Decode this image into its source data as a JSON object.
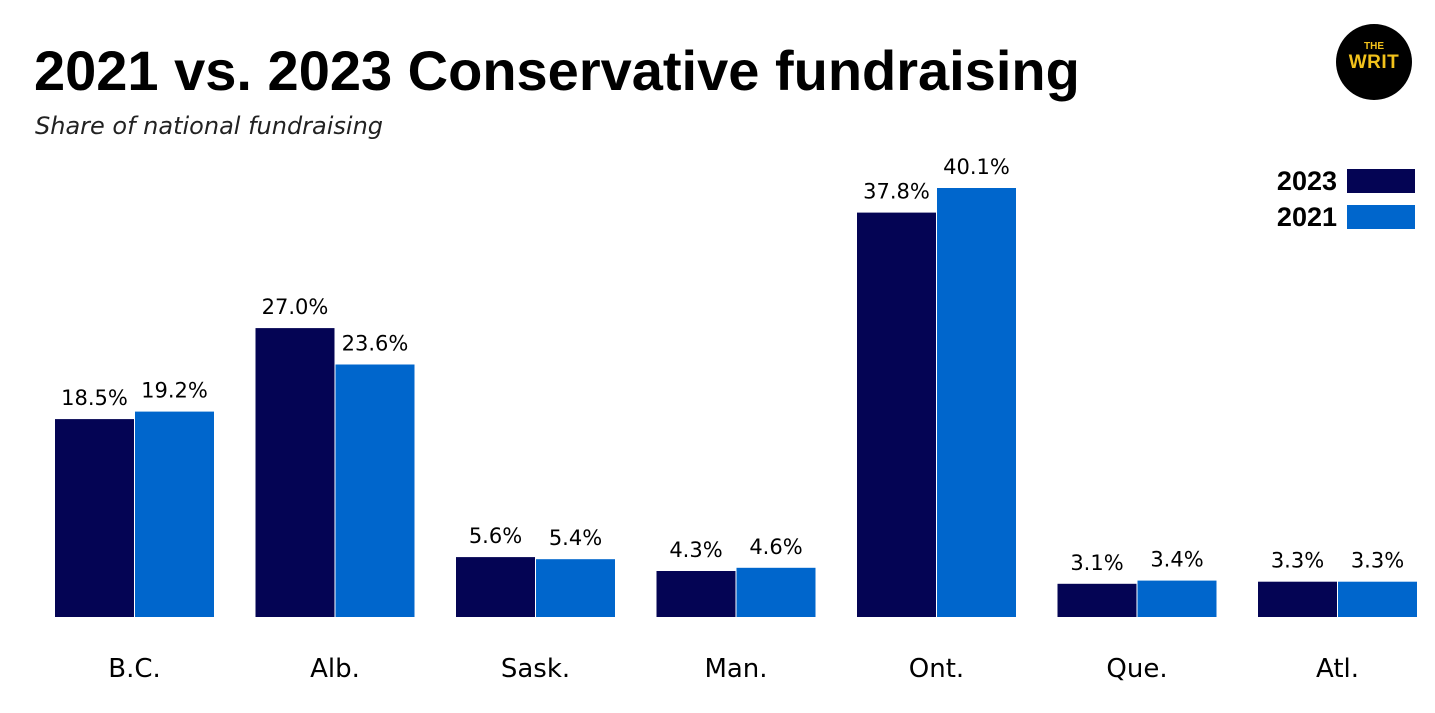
{
  "logo": {
    "line1": "THE",
    "line2": "WRIT"
  },
  "colors": {
    "series_2023": "#040454",
    "series_2021": "#0066cc",
    "logo_accent": "#f2c21b"
  },
  "chart_data": {
    "type": "bar",
    "title": "2021 vs. 2023 Conservative fundraising",
    "subtitle": "Share of national fundraising",
    "categories": [
      "B.C.",
      "Alb.",
      "Sask.",
      "Man.",
      "Ont.",
      "Que.",
      "Atl."
    ],
    "series": [
      {
        "name": "2023",
        "values": [
          18.5,
          27.0,
          5.6,
          4.3,
          37.8,
          3.1,
          3.3
        ],
        "labels": [
          "18.5%",
          "27.0%",
          "5.6%",
          "4.3%",
          "37.8%",
          "3.1%",
          "3.3%"
        ]
      },
      {
        "name": "2021",
        "values": [
          19.2,
          23.6,
          5.4,
          4.6,
          40.1,
          3.4,
          3.3
        ],
        "labels": [
          "19.2%",
          "23.6%",
          "5.4%",
          "4.6%",
          "40.1%",
          "3.4%",
          "3.3%"
        ]
      }
    ],
    "ylim": [
      0,
      40.1
    ],
    "ylabel": "",
    "xlabel": "",
    "grid": false,
    "legend_position": "top-right",
    "unit": "%"
  }
}
